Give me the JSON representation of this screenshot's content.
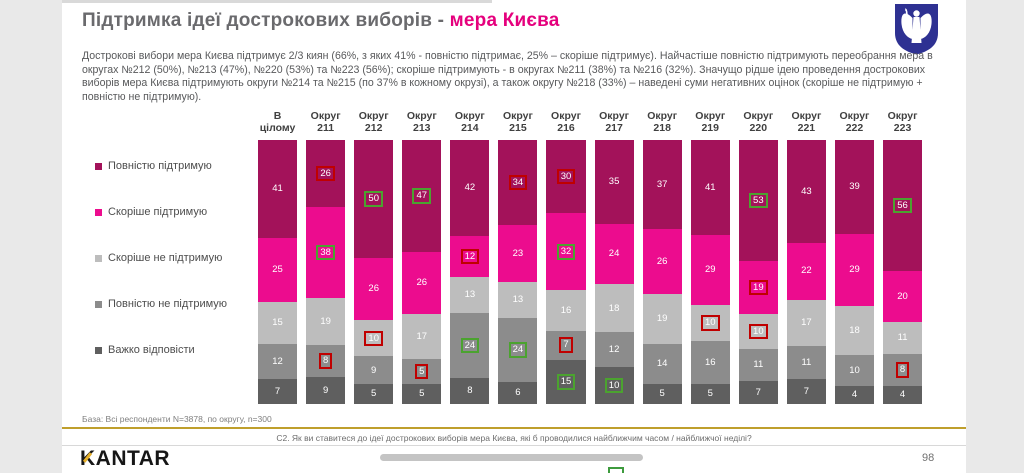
{
  "slide": {
    "title": {
      "gray": "Підтримка ідеї дострокових виборів - ",
      "pink": "мера Києва"
    },
    "paragraph": "Дострокові вибори мера Києва підтримує 2/3 киян (66%, з яких 41% - повністю підтримає, 25% – скоріше підтримує). Найчастіше повністю підтримують переобрання мера в округах №212 (50%), №213 (47%), №220 (53%) та №223 (56%); скоріше підтримують - в округах №211 (38%) та №216 (32%). Значущо рідше ідею проведення дострокових виборів мера Києва підтримують округи №214 та №215 (по 37% в кожному окрузі), а також округу №218 (33%) – наведені суми негативних оцінок (скоріше не підтримую + повністю не підтримую).",
    "base_note": "База: Всі респонденти N=3878, по округу, n=300",
    "question": "C2. Як ви ставитеся до ідеї дострокових виборів мера Києва, які б проводилися найближчим часом / найближчої неділі?",
    "page_number": "98",
    "logo_text": "KANTAR",
    "emblem_name": "kyiv-coat-of-arms"
  },
  "chart_data": {
    "type": "bar",
    "stacked": true,
    "unit": "percent",
    "title": "Підтримка ідеї дострокових виборів - мера Києва",
    "legend_position": "left",
    "sig_higher_color": "#4ba32f",
    "sig_lower_color": "#c00000",
    "categories": [
      {
        "line1": "В",
        "line2": "цілому"
      },
      {
        "line1": "Округ",
        "line2": "211"
      },
      {
        "line1": "Округ",
        "line2": "212"
      },
      {
        "line1": "Округ",
        "line2": "213"
      },
      {
        "line1": "Округ",
        "line2": "214"
      },
      {
        "line1": "Округ",
        "line2": "215"
      },
      {
        "line1": "Округ",
        "line2": "216"
      },
      {
        "line1": "Округ",
        "line2": "217"
      },
      {
        "line1": "Округ",
        "line2": "218"
      },
      {
        "line1": "Округ",
        "line2": "219"
      },
      {
        "line1": "Округ",
        "line2": "220"
      },
      {
        "line1": "Округ",
        "line2": "221"
      },
      {
        "line1": "Округ",
        "line2": "222"
      },
      {
        "line1": "Округ",
        "line2": "223"
      }
    ],
    "series": [
      {
        "name": "Повністю підтримую",
        "color": "#a3125a",
        "values": [
          41,
          26,
          50,
          47,
          42,
          34,
          30,
          35,
          37,
          41,
          53,
          43,
          39,
          56
        ]
      },
      {
        "name": "Скоріше підтримую",
        "color": "#ec0c8e",
        "values": [
          25,
          38,
          26,
          26,
          12,
          23,
          32,
          24,
          26,
          29,
          19,
          22,
          29,
          20
        ]
      },
      {
        "name": "Скоріше не підтримую",
        "color": "#bdbdbd",
        "values": [
          15,
          19,
          10,
          17,
          13,
          13,
          16,
          18,
          19,
          10,
          10,
          17,
          18,
          11
        ]
      },
      {
        "name": "Повністю не підтримую",
        "color": "#8c8c8c",
        "values": [
          12,
          8,
          9,
          5,
          24,
          24,
          7,
          12,
          14,
          16,
          11,
          11,
          10,
          8
        ]
      },
      {
        "name": "Важко відповісти",
        "color": "#5f5f5f",
        "values": [
          7,
          9,
          5,
          5,
          8,
          6,
          15,
          10,
          5,
          5,
          7,
          7,
          4,
          4
        ]
      }
    ],
    "marks": [
      [
        "",
        "",
        "",
        "",
        ""
      ],
      [
        "r",
        "g",
        "",
        "r",
        ""
      ],
      [
        "g",
        "",
        "r",
        "",
        ""
      ],
      [
        "g",
        "",
        "",
        "r",
        ""
      ],
      [
        "",
        "r",
        "",
        "g",
        ""
      ],
      [
        "r",
        "",
        "",
        "g",
        ""
      ],
      [
        "r",
        "g",
        "",
        "r",
        "g"
      ],
      [
        "",
        "",
        "",
        "",
        "g"
      ],
      [
        "",
        "",
        "",
        "",
        ""
      ],
      [
        "",
        "",
        "r",
        "",
        ""
      ],
      [
        "g",
        "r",
        "r",
        "",
        ""
      ],
      [
        "",
        "",
        "",
        "",
        ""
      ],
      [
        "",
        "",
        "",
        "",
        ""
      ],
      [
        "g",
        "",
        "",
        "r",
        ""
      ]
    ]
  }
}
